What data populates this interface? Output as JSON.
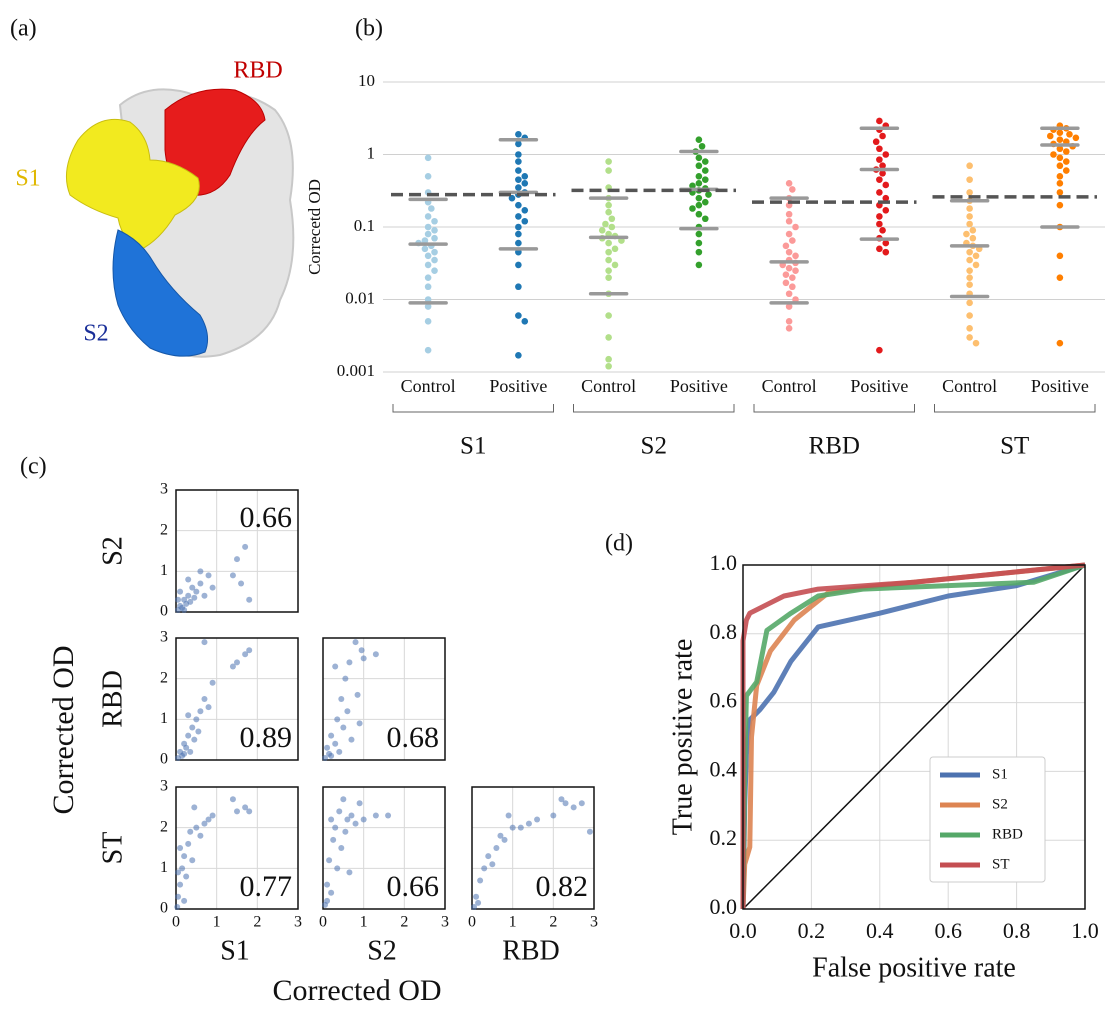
{
  "structure": {
    "panel_label": "(a)",
    "labels": {
      "rbd": "RBD",
      "s1": "S1",
      "s2": "S2"
    }
  },
  "chart_data": [
    {
      "type": "swarm",
      "panel_label": "(b)",
      "y_label": "Correcetd OD",
      "log_scale": true,
      "ylim": [
        0.001,
        10
      ],
      "yticks": [
        0.001,
        0.01,
        0.1,
        1,
        10
      ],
      "grid": true,
      "summary_color": "#999999",
      "threshold_color": "#555555",
      "groups": [
        {
          "name": "S1",
          "threshold": 0.28,
          "series": [
            {
              "name": "Control",
              "color": "#a6cee3",
              "summary": [
                0.24,
                0.058,
                0.009
              ],
              "values": [
                0.9,
                0.5,
                0.3,
                0.22,
                0.18,
                0.14,
                0.12,
                0.1,
                0.09,
                0.08,
                0.07,
                0.065,
                0.06,
                0.055,
                0.05,
                0.045,
                0.04,
                0.035,
                0.03,
                0.025,
                0.02,
                0.015,
                0.01,
                0.008,
                0.005,
                0.002
              ]
            },
            {
              "name": "Positive",
              "color": "#1f78b4",
              "summary": [
                1.6,
                0.3,
                0.05
              ],
              "values": [
                1.9,
                1.7,
                1.4,
                1.0,
                0.8,
                0.6,
                0.5,
                0.45,
                0.4,
                0.35,
                0.3,
                0.28,
                0.25,
                0.2,
                0.17,
                0.14,
                0.12,
                0.1,
                0.08,
                0.06,
                0.045,
                0.03,
                0.015,
                0.006,
                0.005,
                0.0017
              ]
            }
          ]
        },
        {
          "name": "S2",
          "threshold": 0.32,
          "series": [
            {
              "name": "Control",
              "color": "#b2df8a",
              "summary": [
                0.25,
                0.072,
                0.012
              ],
              "values": [
                0.8,
                0.6,
                0.35,
                0.25,
                0.2,
                0.16,
                0.13,
                0.11,
                0.1,
                0.09,
                0.08,
                0.075,
                0.07,
                0.065,
                0.06,
                0.05,
                0.045,
                0.035,
                0.03,
                0.025,
                0.02,
                0.012,
                0.006,
                0.003,
                0.0015,
                0.0012
              ]
            },
            {
              "name": "Positive",
              "color": "#33a02c",
              "summary": [
                1.1,
                0.33,
                0.095
              ],
              "values": [
                1.6,
                1.3,
                1.1,
                0.9,
                0.8,
                0.7,
                0.6,
                0.5,
                0.45,
                0.4,
                0.37,
                0.34,
                0.32,
                0.3,
                0.28,
                0.25,
                0.22,
                0.2,
                0.18,
                0.15,
                0.13,
                0.1,
                0.08,
                0.06,
                0.045,
                0.03
              ]
            }
          ]
        },
        {
          "name": "RBD",
          "threshold": 0.22,
          "series": [
            {
              "name": "Control",
              "color": "#fb9a99",
              "summary": [
                0.25,
                0.033,
                0.009
              ],
              "values": [
                0.4,
                0.33,
                0.25,
                0.2,
                0.15,
                0.12,
                0.1,
                0.08,
                0.065,
                0.055,
                0.045,
                0.04,
                0.035,
                0.032,
                0.03,
                0.027,
                0.025,
                0.022,
                0.02,
                0.017,
                0.015,
                0.012,
                0.01,
                0.008,
                0.005,
                0.004
              ]
            },
            {
              "name": "Positive",
              "color": "#e31a1c",
              "summary": [
                2.3,
                0.62,
                0.068
              ],
              "values": [
                2.9,
                2.5,
                2.2,
                1.8,
                1.5,
                1.2,
                1.0,
                0.85,
                0.7,
                0.62,
                0.55,
                0.45,
                0.38,
                0.3,
                0.25,
                0.2,
                0.17,
                0.14,
                0.11,
                0.09,
                0.07,
                0.06,
                0.05,
                0.045,
                0.002
              ]
            }
          ]
        },
        {
          "name": "ST",
          "threshold": 0.26,
          "series": [
            {
              "name": "Control",
              "color": "#fdbf6f",
              "summary": [
                0.23,
                0.055,
                0.011
              ],
              "values": [
                0.7,
                0.45,
                0.3,
                0.23,
                0.18,
                0.14,
                0.11,
                0.09,
                0.08,
                0.07,
                0.06,
                0.055,
                0.05,
                0.045,
                0.04,
                0.035,
                0.03,
                0.025,
                0.02,
                0.016,
                0.012,
                0.009,
                0.006,
                0.004,
                0.003,
                0.0025
              ]
            },
            {
              "name": "Positive",
              "color": "#ff7f00",
              "summary": [
                2.3,
                1.35,
                0.1
              ],
              "values": [
                2.5,
                2.3,
                2.2,
                2.0,
                1.9,
                1.8,
                1.7,
                1.6,
                1.5,
                1.4,
                1.3,
                1.2,
                1.1,
                1.0,
                0.9,
                0.8,
                0.7,
                0.6,
                0.5,
                0.4,
                0.3,
                0.2,
                0.1,
                0.04,
                0.02,
                0.0025
              ]
            }
          ]
        }
      ]
    },
    {
      "type": "scatter_matrix",
      "panel_label": "(c)",
      "x_label": "Corrected OD",
      "y_label": "Corrected OD",
      "variables": [
        "S1",
        "S2",
        "RBD",
        "ST"
      ],
      "color": "#4c72b0",
      "xlim": [
        0,
        3
      ],
      "ylim": [
        0,
        3
      ],
      "xticks": [
        0,
        1,
        2,
        3
      ],
      "yticks": [
        0,
        1,
        2,
        3
      ],
      "grid": true,
      "panels": [
        {
          "r": 0.66,
          "x": [
            0.05,
            0.1,
            0.15,
            0.2,
            0.25,
            0.3,
            0.35,
            0.4,
            0.45,
            0.5,
            0.6,
            0.7,
            0.8,
            0.9,
            0.1,
            0.3,
            1.4,
            1.5,
            1.7,
            1.8,
            1.6,
            0.05,
            0.2,
            0.6
          ],
          "y": [
            0.05,
            0.15,
            0.1,
            0.3,
            0.2,
            0.4,
            0.25,
            0.6,
            0.35,
            0.5,
            0.7,
            0.4,
            0.9,
            0.6,
            0.5,
            0.8,
            0.9,
            1.3,
            1.6,
            0.3,
            0.7,
            0.3,
            0.05,
            1.0
          ]
        },
        {
          "r": 0.89,
          "x": [
            0.05,
            0.1,
            0.15,
            0.2,
            0.25,
            0.3,
            0.4,
            0.45,
            0.5,
            0.6,
            0.7,
            0.8,
            0.9,
            0.35,
            0.55,
            1.4,
            1.5,
            1.7,
            1.8,
            0.7,
            0.3,
            0.2
          ],
          "y": [
            0.05,
            0.2,
            0.1,
            0.4,
            0.3,
            0.6,
            0.8,
            0.5,
            1.0,
            1.2,
            1.5,
            1.3,
            1.9,
            0.2,
            0.7,
            2.3,
            2.4,
            2.6,
            2.7,
            2.9,
            1.1,
            0.15
          ]
        },
        {
          "r": 0.68,
          "x": [
            0.05,
            0.1,
            0.2,
            0.2,
            0.3,
            0.35,
            0.4,
            0.45,
            0.5,
            0.55,
            0.6,
            0.65,
            0.7,
            0.8,
            0.9,
            1.0,
            0.95,
            1.3,
            0.3,
            0.15,
            0.85
          ],
          "y": [
            0.05,
            0.3,
            0.1,
            0.6,
            0.4,
            1.0,
            0.2,
            1.5,
            0.8,
            2.0,
            1.2,
            2.4,
            0.5,
            2.9,
            0.9,
            2.5,
            2.7,
            2.6,
            2.3,
            0.15,
            1.6
          ]
        },
        {
          "r": 0.77,
          "x": [
            0.03,
            0.05,
            0.1,
            0.15,
            0.2,
            0.25,
            0.3,
            0.35,
            0.4,
            0.5,
            0.6,
            0.7,
            0.8,
            0.9,
            0.1,
            0.2,
            1.4,
            1.5,
            1.7,
            1.8,
            0.45,
            0.05
          ],
          "y": [
            0.05,
            0.3,
            0.6,
            1.0,
            1.3,
            0.8,
            1.6,
            1.9,
            1.2,
            2.0,
            1.8,
            2.1,
            2.2,
            2.3,
            1.5,
            0.2,
            2.7,
            2.4,
            2.5,
            2.4,
            2.5,
            0.9
          ]
        },
        {
          "r": 0.66,
          "x": [
            0.05,
            0.1,
            0.15,
            0.2,
            0.25,
            0.3,
            0.35,
            0.4,
            0.45,
            0.5,
            0.55,
            0.6,
            0.7,
            0.8,
            0.9,
            1.0,
            1.3,
            1.6,
            0.2,
            0.1,
            0.65
          ],
          "y": [
            0.1,
            0.6,
            1.2,
            0.4,
            1.7,
            2.0,
            1.0,
            2.4,
            1.5,
            2.7,
            1.9,
            2.2,
            2.3,
            2.1,
            2.6,
            2.2,
            2.3,
            2.3,
            2.2,
            0.2,
            0.9
          ]
        },
        {
          "r": 0.82,
          "x": [
            0.05,
            0.1,
            0.2,
            0.3,
            0.4,
            0.5,
            0.6,
            0.7,
            0.8,
            1.0,
            1.2,
            1.4,
            1.6,
            2.0,
            2.3,
            2.5,
            2.7,
            2.9,
            0.15,
            0.9,
            2.2
          ],
          "y": [
            0.05,
            0.3,
            0.7,
            1.0,
            1.3,
            1.1,
            1.5,
            1.8,
            1.7,
            2.0,
            2.0,
            2.1,
            2.2,
            2.3,
            2.6,
            2.5,
            2.6,
            1.9,
            0.15,
            2.3,
            2.7
          ]
        }
      ]
    },
    {
      "type": "line",
      "panel_label": "(d)",
      "x_label": "False positive rate",
      "y_label": "True positive rate",
      "xlim": [
        0,
        1
      ],
      "ylim": [
        0,
        1
      ],
      "xticks": [
        {
          "value": 0,
          "label": "0.0"
        },
        {
          "value": 0.2,
          "label": "0.2"
        },
        {
          "value": 0.4,
          "label": "0.4"
        },
        {
          "value": 0.6,
          "label": "0.6"
        },
        {
          "value": 0.8,
          "label": "0.8"
        },
        {
          "value": 1,
          "label": "1.0"
        }
      ],
      "yticks": [
        {
          "value": 0,
          "label": "0.0"
        },
        {
          "value": 0.2,
          "label": "0.2"
        },
        {
          "value": 0.4,
          "label": "0.4"
        },
        {
          "value": 0.6,
          "label": "0.6"
        },
        {
          "value": 0.8,
          "label": "0.8"
        },
        {
          "value": 1,
          "label": "1.0"
        }
      ],
      "grid": true,
      "legend": "lower right",
      "series": [
        {
          "name": "S1",
          "color": "#4c72b0",
          "x": [
            0,
            0.005,
            0.01,
            0.02,
            0.05,
            0.09,
            0.14,
            0.22,
            0.4,
            0.6,
            0.8,
            1
          ],
          "values": [
            0,
            0.3,
            0.45,
            0.55,
            0.58,
            0.63,
            0.72,
            0.82,
            0.86,
            0.91,
            0.94,
            1
          ]
        },
        {
          "name": "S2",
          "color": "#dd8452",
          "x": [
            0,
            0.005,
            0.02,
            0.025,
            0.04,
            0.08,
            0.15,
            0.25,
            0.4,
            0.7,
            1
          ],
          "values": [
            0,
            0.13,
            0.18,
            0.5,
            0.65,
            0.75,
            0.84,
            0.92,
            0.94,
            0.97,
            1
          ]
        },
        {
          "name": "RBD",
          "color": "#55a868",
          "x": [
            0,
            0.005,
            0.01,
            0.04,
            0.07,
            0.14,
            0.22,
            0.35,
            0.6,
            0.85,
            1
          ],
          "values": [
            0,
            0.4,
            0.62,
            0.66,
            0.81,
            0.86,
            0.91,
            0.93,
            0.94,
            0.95,
            1
          ]
        },
        {
          "name": "ST",
          "color": "#c44e52",
          "x": [
            0,
            0,
            0.01,
            0.02,
            0.06,
            0.12,
            0.22,
            0.5,
            0.8,
            1
          ],
          "values": [
            0,
            0.78,
            0.84,
            0.86,
            0.88,
            0.91,
            0.93,
            0.95,
            0.98,
            1
          ]
        }
      ]
    }
  ]
}
